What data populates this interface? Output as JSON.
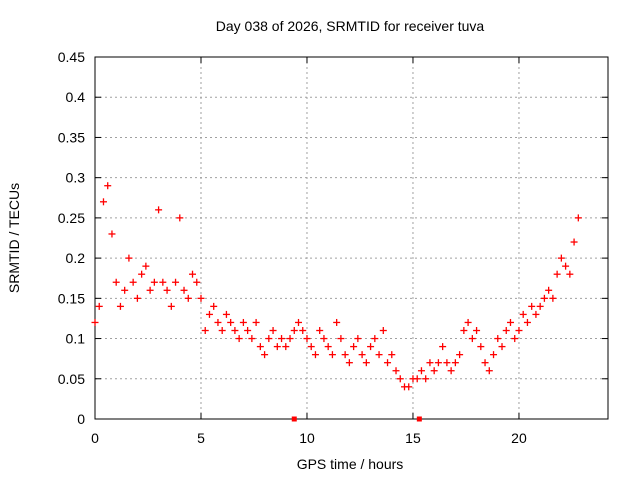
{
  "chart_data": {
    "type": "scatter",
    "title": "Day 038 of 2026, SRMTID for receiver tuva",
    "xlabel": "GPS time / hours",
    "ylabel": "SRMTID / TECUs",
    "xlim": [
      0,
      24.2
    ],
    "ylim": [
      0,
      0.45
    ],
    "xticks": [
      0,
      5,
      10,
      15,
      20
    ],
    "xtick_labels": [
      "0",
      "5",
      "10",
      "15",
      "20"
    ],
    "yticks": [
      0,
      0.05,
      0.1,
      0.15,
      0.2,
      0.25,
      0.3,
      0.35,
      0.4,
      0.45
    ],
    "ytick_labels": [
      "0",
      "0.05",
      "0.1",
      "0.15",
      "0.2",
      "0.25",
      "0.3",
      "0.35",
      "0.4",
      "0.45"
    ],
    "grid": true,
    "marker_color": "#ff0000",
    "series": [
      {
        "name": "SRMTID",
        "marker": "plus",
        "x": [
          0.0,
          0.2,
          0.4,
          0.6,
          0.8,
          1.0,
          1.2,
          1.4,
          1.6,
          1.8,
          2.0,
          2.2,
          2.4,
          2.6,
          2.8,
          3.0,
          3.2,
          3.4,
          3.6,
          3.8,
          4.0,
          4.2,
          4.4,
          4.6,
          4.8,
          5.0,
          5.2,
          5.4,
          5.6,
          5.8,
          6.0,
          6.2,
          6.4,
          6.6,
          6.8,
          7.0,
          7.2,
          7.4,
          7.6,
          7.8,
          8.0,
          8.2,
          8.4,
          8.6,
          8.8,
          9.0,
          9.2,
          9.4,
          9.6,
          9.8,
          10.0,
          10.2,
          10.4,
          10.6,
          10.8,
          11.0,
          11.2,
          11.4,
          11.6,
          11.8,
          12.0,
          12.2,
          12.4,
          12.6,
          12.8,
          13.0,
          13.2,
          13.4,
          13.6,
          13.8,
          14.0,
          14.2,
          14.4,
          14.6,
          14.8,
          15.0,
          15.2,
          15.4,
          15.6,
          15.8,
          16.0,
          16.2,
          16.4,
          16.6,
          16.8,
          17.0,
          17.2,
          17.4,
          17.6,
          17.8,
          18.0,
          18.2,
          18.4,
          18.6,
          18.8,
          19.0,
          19.2,
          19.4,
          19.6,
          19.8,
          20.0,
          20.2,
          20.4,
          20.6,
          20.8,
          21.0,
          21.2,
          21.4,
          21.6,
          21.8,
          22.0,
          22.2,
          22.4,
          22.6,
          22.8
        ],
        "y": [
          0.12,
          0.14,
          0.27,
          0.29,
          0.23,
          0.17,
          0.14,
          0.16,
          0.2,
          0.17,
          0.15,
          0.18,
          0.19,
          0.16,
          0.17,
          0.26,
          0.17,
          0.16,
          0.14,
          0.17,
          0.25,
          0.16,
          0.15,
          0.18,
          0.17,
          0.15,
          0.11,
          0.13,
          0.14,
          0.12,
          0.11,
          0.13,
          0.12,
          0.11,
          0.1,
          0.12,
          0.11,
          0.1,
          0.12,
          0.09,
          0.08,
          0.1,
          0.11,
          0.09,
          0.1,
          0.09,
          0.1,
          0.11,
          0.12,
          0.11,
          0.1,
          0.09,
          0.08,
          0.11,
          0.1,
          0.09,
          0.08,
          0.12,
          0.1,
          0.08,
          0.07,
          0.09,
          0.1,
          0.08,
          0.07,
          0.09,
          0.1,
          0.08,
          0.11,
          0.07,
          0.08,
          0.06,
          0.05,
          0.04,
          0.04,
          0.05,
          0.05,
          0.06,
          0.05,
          0.07,
          0.06,
          0.07,
          0.09,
          0.07,
          0.06,
          0.07,
          0.08,
          0.11,
          0.12,
          0.1,
          0.11,
          0.09,
          0.07,
          0.06,
          0.08,
          0.1,
          0.09,
          0.11,
          0.12,
          0.1,
          0.11,
          0.13,
          0.12,
          0.14,
          0.13,
          0.14,
          0.15,
          0.16,
          0.15,
          0.18,
          0.2,
          0.19,
          0.18,
          0.22,
          0.25
        ]
      }
    ],
    "axis_markers": {
      "y": 0,
      "x": [
        9.4,
        15.3
      ]
    }
  }
}
